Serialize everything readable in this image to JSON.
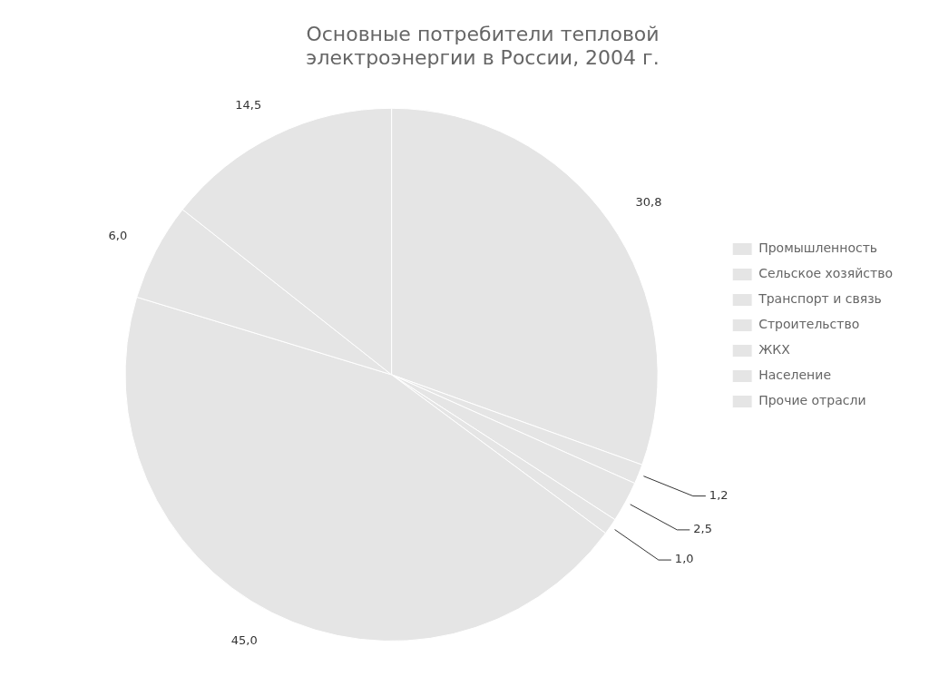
{
  "chart_data": {
    "type": "pie",
    "title": "Основные потребители тепловой\nэлектроэнергии в России, 2004 г.",
    "categories": [
      "Промышленность",
      "Сельское хозяйство",
      "Транспорт и связь",
      "Строительство",
      "ЖКХ",
      "Население",
      "Прочие отрасли"
    ],
    "values": [
      30.8,
      1.2,
      2.5,
      1.0,
      45.0,
      6.0,
      14.5
    ],
    "value_labels": [
      "30,8",
      "1,2",
      "2,5",
      "1,0",
      "45,0",
      "6,0",
      "14,5"
    ],
    "data_labels": true,
    "legend": "right"
  }
}
